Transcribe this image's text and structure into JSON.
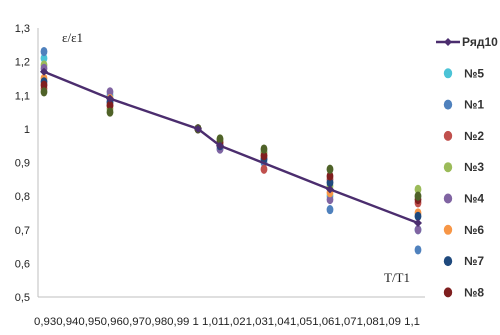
{
  "chart_data": {
    "type": "scatter",
    "ylim": [
      0.5,
      1.3
    ],
    "xlim": [
      0.93,
      1.1
    ],
    "y_ticks": [
      "0,5",
      "0,6",
      "0,7",
      "0,8",
      "0,9",
      "1",
      "1,1",
      "1,2",
      "1,3"
    ],
    "x_tick_label": "0,930,940,950,960,970,980,99 1 1,011,021,031,041,051,061,071,081,09 1,1",
    "ylabel": "ε/ε1",
    "xlabel": "T/T1",
    "grid": false,
    "legend_position": "right",
    "line_series": {
      "name": "Ряд10",
      "color": "#4b2d6e",
      "x": [
        0.93,
        0.96,
        1.0,
        1.01,
        1.06,
        1.1
      ],
      "y": [
        1.17,
        1.09,
        1.0,
        0.95,
        0.82,
        0.72
      ]
    },
    "series": [
      {
        "name": "№5",
        "color": "#4bc3d6",
        "x": [
          0.93,
          0.96,
          1.0,
          1.01,
          1.03,
          1.06,
          1.1
        ],
        "y": [
          1.21,
          1.1,
          1.0,
          0.96,
          0.93,
          0.8,
          0.7
        ]
      },
      {
        "name": "№1",
        "color": "#4f81bd",
        "x": [
          0.93,
          0.96,
          1.0,
          1.01,
          1.03,
          1.06,
          1.1
        ],
        "y": [
          1.23,
          1.08,
          1.0,
          0.94,
          0.9,
          0.76,
          0.64
        ]
      },
      {
        "name": "№2",
        "color": "#c0504d",
        "x": [
          0.93,
          0.96,
          1.0,
          1.01,
          1.03,
          1.06,
          1.1
        ],
        "y": [
          1.12,
          1.07,
          1.0,
          0.95,
          0.88,
          0.85,
          0.78
        ]
      },
      {
        "name": "№3",
        "color": "#9bbb59",
        "x": [
          0.93,
          0.96,
          1.0,
          1.01,
          1.03,
          1.06,
          1.1
        ],
        "y": [
          1.19,
          1.06,
          1.0,
          0.97,
          0.93,
          0.83,
          0.82
        ]
      },
      {
        "name": "№4",
        "color": "#8064a2",
        "x": [
          0.93,
          0.96,
          1.0,
          1.01,
          1.03,
          1.06,
          1.1
        ],
        "y": [
          1.18,
          1.11,
          1.0,
          0.94,
          0.91,
          0.79,
          0.7
        ]
      },
      {
        "name": "№6",
        "color": "#f79646",
        "x": [
          0.93,
          0.96,
          1.0,
          1.01,
          1.03,
          1.06,
          1.1
        ],
        "y": [
          1.15,
          1.09,
          1.0,
          0.96,
          0.92,
          0.81,
          0.75
        ]
      },
      {
        "name": "№7",
        "color": "#1f497d",
        "x": [
          0.93,
          0.96,
          1.0,
          1.01,
          1.03,
          1.06,
          1.1
        ],
        "y": [
          1.14,
          1.08,
          1.0,
          0.95,
          0.91,
          0.84,
          0.74
        ]
      },
      {
        "name": "№8",
        "color": "#7f1f1f",
        "x": [
          0.93,
          0.96,
          1.0,
          1.01,
          1.03,
          1.06,
          1.1
        ],
        "y": [
          1.13,
          1.07,
          1.0,
          0.96,
          0.92,
          0.86,
          0.79
        ]
      },
      {
        "name": "",
        "color": "#4f6228",
        "x": [
          0.93,
          0.96,
          1.0,
          1.01,
          1.03,
          1.06,
          1.1
        ],
        "y": [
          1.11,
          1.05,
          1.0,
          0.97,
          0.94,
          0.88,
          0.8
        ]
      }
    ]
  }
}
